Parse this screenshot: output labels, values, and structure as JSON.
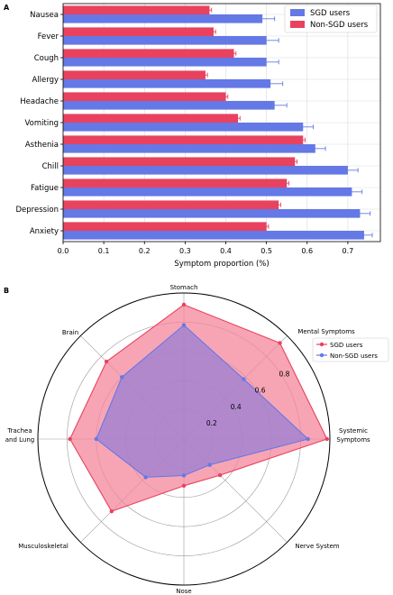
{
  "panels": {
    "a_letter": "A",
    "b_letter": "B"
  },
  "colors": {
    "sgd": "#6478e6",
    "non_sgd": "#e8425e",
    "radar_sgd_fill": "#f4879b",
    "radar_non_sgd_fill": "#9b7fd6",
    "grid": "#d9d9d9"
  },
  "chart_data": [
    {
      "type": "bar",
      "orientation": "horizontal",
      "categories": [
        "Nausea",
        "Fever",
        "Cough",
        "Allergy",
        "Headache",
        "Vomiting",
        "Asthenia",
        "Chill",
        "Fatigue",
        "Depression",
        "Anxiety"
      ],
      "series": [
        {
          "name": "SGD users",
          "values": [
            0.49,
            0.5,
            0.5,
            0.51,
            0.52,
            0.59,
            0.62,
            0.7,
            0.71,
            0.73,
            0.74
          ],
          "errors": [
            0.03,
            0.03,
            0.03,
            0.03,
            0.03,
            0.025,
            0.025,
            0.025,
            0.025,
            0.025,
            0.02
          ]
        },
        {
          "name": "Non-SGD users",
          "values": [
            0.36,
            0.37,
            0.42,
            0.35,
            0.4,
            0.43,
            0.59,
            0.57,
            0.55,
            0.53,
            0.5
          ],
          "errors": [
            0.005,
            0.005,
            0.005,
            0.005,
            0.005,
            0.005,
            0.005,
            0.005,
            0.005,
            0.005,
            0.005
          ]
        }
      ],
      "xlabel": "Symptom proportion (%)",
      "xlim": [
        0.0,
        0.78
      ],
      "xticks": [
        "0.0",
        "0.1",
        "0.2",
        "0.3",
        "0.4",
        "0.5",
        "0.6",
        "0.7"
      ],
      "grid": true,
      "legend": "top-right"
    },
    {
      "type": "radar",
      "categories": [
        "Stomach",
        "Mental Symptoms",
        "Systemic Symptoms",
        "Nerve System",
        "Nose",
        "Musculoskeletal",
        "Trachea and Lung",
        "Brain"
      ],
      "series": [
        {
          "name": "SGD users",
          "values": [
            0.92,
            0.93,
            0.98,
            0.35,
            0.32,
            0.7,
            0.78,
            0.75
          ]
        },
        {
          "name": "Non-SGD users",
          "values": [
            0.78,
            0.58,
            0.85,
            0.25,
            0.25,
            0.37,
            0.6,
            0.6
          ]
        }
      ],
      "rlim": [
        0,
        1.0
      ],
      "rticks": [
        "0.2",
        "0.4",
        "0.6",
        "0.8"
      ],
      "grid": true,
      "legend": "right"
    }
  ]
}
